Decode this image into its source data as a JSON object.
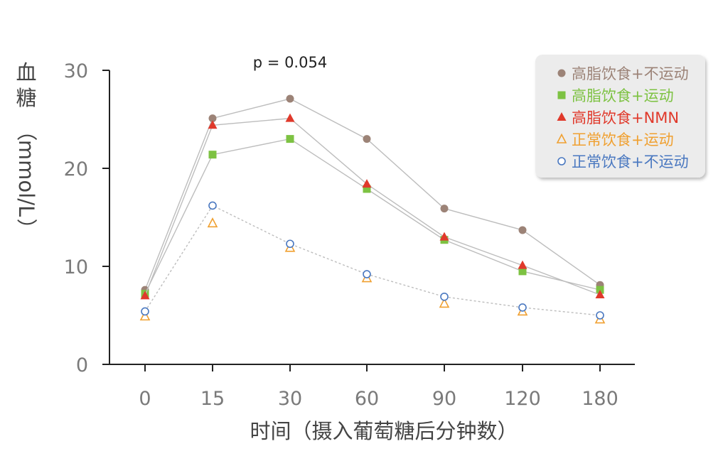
{
  "chart_data": {
    "type": "line",
    "ylabel": "血糖（mmol/L）",
    "ylabel_chars": [
      "血",
      "糖",
      "（",
      "mmol/L",
      "）"
    ],
    "xlabel": "时间（摄入葡萄糖后分钟数）",
    "categories": [
      "0",
      "15",
      "30",
      "60",
      "90",
      "120",
      "180"
    ],
    "y_ticks": [
      "0",
      "10",
      "20",
      "30"
    ],
    "ylim": [
      0,
      30
    ],
    "grid": false,
    "legend_position": "top-right",
    "annotation": "p = 0.054",
    "series": [
      {
        "name": "高脂饮食+不运动",
        "values": [
          7.6,
          25.1,
          27.1,
          23.0,
          15.9,
          13.7,
          8.1
        ],
        "marker": "circle-filled",
        "color": "#9c8377",
        "line": "solid"
      },
      {
        "name": "高脂饮食+运动",
        "values": [
          7.2,
          21.4,
          23.0,
          17.9,
          12.7,
          9.5,
          7.6
        ],
        "marker": "square-filled",
        "color": "#7dc242",
        "line": "solid"
      },
      {
        "name": "高脂饮食+NMN",
        "values": [
          7.0,
          24.4,
          25.1,
          18.4,
          13.0,
          10.1,
          7.1
        ],
        "marker": "triangle-filled",
        "color": "#e0392b",
        "line": "solid"
      },
      {
        "name": "正常饮食+运动",
        "values": [
          4.9,
          14.4,
          11.9,
          8.8,
          6.2,
          5.4,
          4.6
        ],
        "marker": "triangle-open",
        "color": "#f0a030",
        "line": "none"
      },
      {
        "name": "正常饮食+不运动",
        "values": [
          5.4,
          16.2,
          12.3,
          9.2,
          6.9,
          5.8,
          5.0
        ],
        "marker": "circle-open",
        "color": "#4a78c0",
        "line": "dotted"
      }
    ]
  }
}
